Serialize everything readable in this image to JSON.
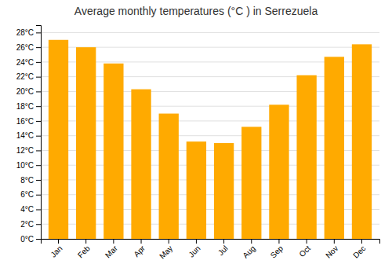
{
  "chart_data": {
    "type": "bar",
    "title": "Average monthly temperatures (°C ) in Serrezuela",
    "categories": [
      "Jan",
      "Feb",
      "Mar",
      "Apr",
      "May",
      "Jun",
      "Jul",
      "Aug",
      "Sep",
      "Oct",
      "Nov",
      "Dec"
    ],
    "values": [
      27.0,
      26.0,
      23.8,
      20.3,
      17.0,
      13.2,
      13.0,
      15.2,
      18.2,
      22.2,
      24.7,
      26.4
    ],
    "color": "#FFAA00",
    "ylim": [
      0,
      29
    ],
    "yticks": [
      {
        "value": 0,
        "label": "0°C"
      },
      {
        "value": 2,
        "label": "2°C"
      },
      {
        "value": 4,
        "label": "4°C"
      },
      {
        "value": 6,
        "label": "6°C"
      },
      {
        "value": 8,
        "label": "8°C"
      },
      {
        "value": 10,
        "label": "10°C"
      },
      {
        "value": 12,
        "label": "12°C"
      },
      {
        "value": 14,
        "label": "14°C"
      },
      {
        "value": 16,
        "label": "16°C"
      },
      {
        "value": 18,
        "label": "18°C"
      },
      {
        "value": 20,
        "label": "20°C"
      },
      {
        "value": 22,
        "label": "22°C"
      },
      {
        "value": 24,
        "label": "24°C"
      },
      {
        "value": 26,
        "label": "26°C"
      },
      {
        "value": 28,
        "label": "28°C"
      }
    ],
    "grid": true
  }
}
